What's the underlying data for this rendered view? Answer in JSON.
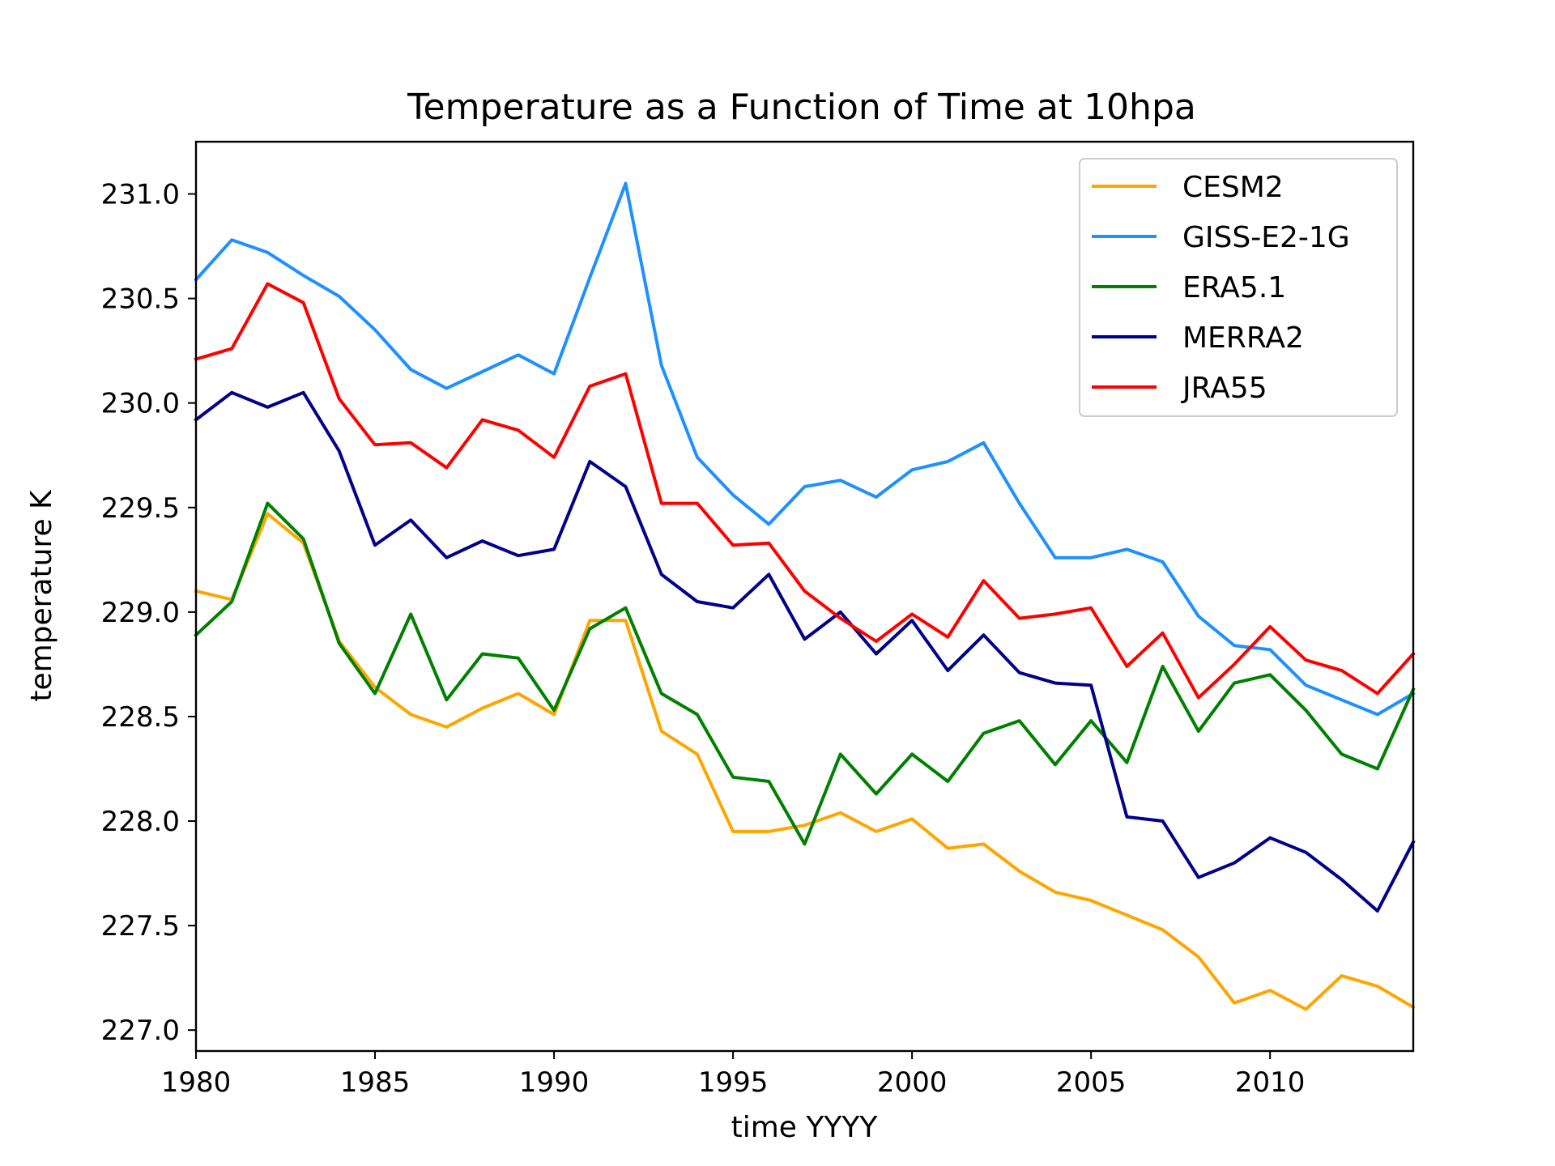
{
  "chart_data": {
    "type": "line",
    "title": "Temperature as a Function of Time at 10hpa",
    "xlabel": "time YYYY",
    "ylabel": "temperature K",
    "xlim": [
      1980,
      2014
    ],
    "ylim": [
      226.9,
      231.25
    ],
    "xticks": [
      1980,
      1985,
      1990,
      1995,
      2000,
      2005,
      2010
    ],
    "xtick_labels": [
      "1980",
      "1985",
      "1990",
      "1995",
      "2000",
      "2005",
      "2010"
    ],
    "yticks": [
      227.0,
      227.5,
      228.0,
      228.5,
      229.0,
      229.5,
      230.0,
      230.5,
      231.0
    ],
    "ytick_labels": [
      "227.0",
      "227.5",
      "228.0",
      "228.5",
      "229.0",
      "229.5",
      "230.0",
      "230.5",
      "231.0"
    ],
    "grid": false,
    "legend_position": "top-right",
    "x": [
      1980,
      1981,
      1982,
      1983,
      1984,
      1985,
      1986,
      1987,
      1988,
      1989,
      1990,
      1991,
      1992,
      1993,
      1994,
      1995,
      1996,
      1997,
      1998,
      1999,
      2000,
      2001,
      2002,
      2003,
      2004,
      2005,
      2006,
      2007,
      2008,
      2009,
      2010,
      2011,
      2012,
      2013,
      2014
    ],
    "series": [
      {
        "name": "CESM2",
        "color": "#ffa500",
        "values": [
          229.1,
          229.06,
          229.47,
          229.33,
          228.86,
          228.64,
          228.51,
          228.45,
          228.54,
          228.61,
          228.51,
          228.96,
          228.96,
          228.43,
          228.32,
          227.95,
          227.95,
          227.98,
          228.04,
          227.95,
          228.01,
          227.87,
          227.89,
          227.76,
          227.66,
          227.62,
          227.55,
          227.48,
          227.35,
          227.13,
          227.19,
          227.1,
          227.26,
          227.21,
          227.11
        ]
      },
      {
        "name": "GISS-E2-1G",
        "color": "#1e90ff",
        "values": [
          230.59,
          230.78,
          230.72,
          230.61,
          230.51,
          230.35,
          230.16,
          230.07,
          230.15,
          230.23,
          230.14,
          230.6,
          231.05,
          230.18,
          229.74,
          229.56,
          229.42,
          229.6,
          229.63,
          229.55,
          229.68,
          229.72,
          229.81,
          229.52,
          229.26,
          229.26,
          229.3,
          229.24,
          228.98,
          228.84,
          228.82,
          228.65,
          228.58,
          228.51,
          228.61
        ]
      },
      {
        "name": "ERA5.1",
        "color": "#008000",
        "values": [
          228.89,
          229.05,
          229.52,
          229.35,
          228.85,
          228.61,
          228.99,
          228.58,
          228.8,
          228.78,
          228.53,
          228.92,
          229.02,
          228.61,
          228.51,
          228.21,
          228.19,
          227.89,
          228.32,
          228.13,
          228.32,
          228.19,
          228.42,
          228.48,
          228.27,
          228.48,
          228.28,
          228.74,
          228.43,
          228.66,
          228.7,
          228.53,
          228.32,
          228.25,
          228.63
        ]
      },
      {
        "name": "MERRA2",
        "color": "#00008b",
        "values": [
          229.92,
          230.05,
          229.98,
          230.05,
          229.77,
          229.32,
          229.44,
          229.26,
          229.34,
          229.27,
          229.3,
          229.72,
          229.6,
          229.18,
          229.05,
          229.02,
          229.18,
          228.87,
          229.0,
          228.8,
          228.96,
          228.72,
          228.89,
          228.71,
          228.66,
          228.65,
          228.02,
          228.0,
          227.73,
          227.8,
          227.92,
          227.85,
          227.72,
          227.57,
          227.9
        ]
      },
      {
        "name": "JRA55",
        "color": "#ff0000",
        "values": [
          230.21,
          230.26,
          230.57,
          230.48,
          230.02,
          229.8,
          229.81,
          229.69,
          229.92,
          229.87,
          229.74,
          230.08,
          230.14,
          229.52,
          229.52,
          229.32,
          229.33,
          229.1,
          228.97,
          228.86,
          228.99,
          228.88,
          229.15,
          228.97,
          228.99,
          229.02,
          228.74,
          228.9,
          228.59,
          228.75,
          228.93,
          228.77,
          228.72,
          228.61,
          228.8
        ]
      }
    ]
  }
}
